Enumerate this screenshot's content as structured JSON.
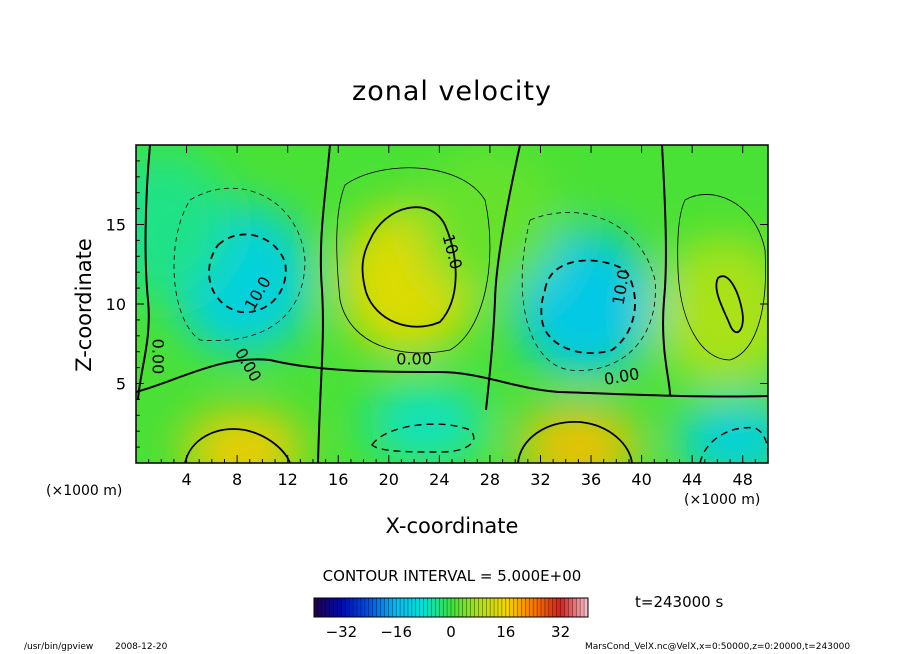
{
  "chart_data": {
    "type": "heatmap",
    "title": "zonal velocity",
    "xlabel": "X-coordinate",
    "ylabel": "Z-coordinate",
    "x_unit": "(×1000 m)",
    "z_unit": "(×1000 m)",
    "xlim": [
      0,
      50
    ],
    "ylim": [
      0,
      20
    ],
    "x_ticks": [
      4,
      8,
      12,
      16,
      20,
      24,
      28,
      32,
      36,
      40,
      44,
      48
    ],
    "y_ticks": [
      5,
      10,
      15
    ],
    "contour_interval_text": "CONTOUR INTERVAL = 5.000E+00",
    "contour_labels": [
      "0.00",
      "0.00",
      "0.00",
      "0.00",
      "10.0",
      "10.0",
      "10.0"
    ],
    "colorbar": {
      "range": [
        -40,
        40
      ],
      "ticks": [
        -32,
        -16,
        0,
        16,
        32
      ]
    },
    "time_text": "t=243000 s",
    "features": [
      {
        "x": 8.5,
        "z": 11.5,
        "value": -12
      },
      {
        "x": 21.5,
        "z": 11.5,
        "value": 14
      },
      {
        "x": 35.5,
        "z": 10.0,
        "value": -14
      },
      {
        "x": 46.5,
        "z": 9.5,
        "value": 8
      },
      {
        "x": 8.5,
        "z": 0.8,
        "value": 17
      },
      {
        "x": 35.0,
        "z": 1.0,
        "value": 18
      },
      {
        "x": 23.0,
        "z": 2.5,
        "value": -7
      },
      {
        "x": 47.5,
        "z": 1.5,
        "value": -12
      },
      {
        "x": 2.0,
        "z": 15.0,
        "value": -4
      },
      {
        "x": 28.0,
        "z": 15.0,
        "value": 3
      }
    ]
  },
  "footer": {
    "program": "/usr/bin/gpview",
    "date": "2008-12-20",
    "source": "MarsCond_VelX.nc@VelX,x=0:50000,z=0:20000,t=243000"
  }
}
